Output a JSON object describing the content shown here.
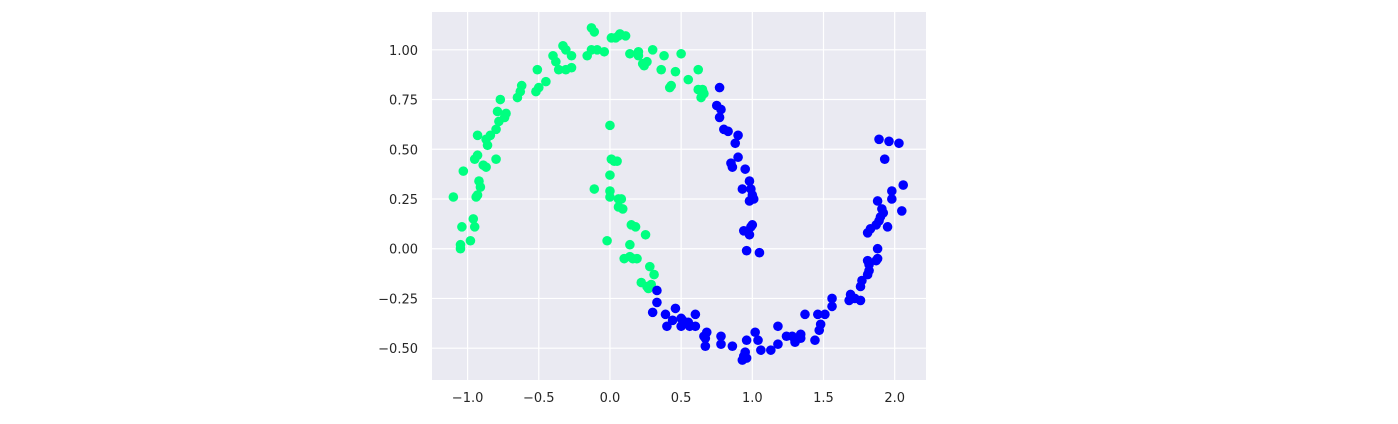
{
  "chart_data": {
    "type": "scatter",
    "title": "",
    "xlabel": "",
    "ylabel": "",
    "xlim": [
      -1.25,
      2.22
    ],
    "ylim": [
      -0.66,
      1.19
    ],
    "grid": true,
    "xticks": [
      {
        "value": -1.0,
        "label": "−1.0"
      },
      {
        "value": -0.5,
        "label": "−0.5"
      },
      {
        "value": 0.0,
        "label": "0.0"
      },
      {
        "value": 0.5,
        "label": "0.5"
      },
      {
        "value": 1.0,
        "label": "1.0"
      },
      {
        "value": 1.5,
        "label": "1.5"
      },
      {
        "value": 2.0,
        "label": "2.0"
      }
    ],
    "yticks": [
      {
        "value": -0.5,
        "label": "−0.50"
      },
      {
        "value": -0.25,
        "label": "−0.25"
      },
      {
        "value": 0.0,
        "label": "0.00"
      },
      {
        "value": 0.25,
        "label": "0.25"
      },
      {
        "value": 0.5,
        "label": "0.50"
      },
      {
        "value": 0.75,
        "label": "0.75"
      },
      {
        "value": 1.0,
        "label": "1.00"
      }
    ],
    "series": [
      {
        "color": "#00ff80",
        "points": [
          [
            -1.1,
            0.26
          ],
          [
            -1.05,
            0.02
          ],
          [
            -1.05,
            0.0
          ],
          [
            -1.04,
            0.11
          ],
          [
            -1.03,
            0.39
          ],
          [
            -0.98,
            0.04
          ],
          [
            -0.96,
            0.15
          ],
          [
            -0.95,
            0.11
          ],
          [
            -0.94,
            0.26
          ],
          [
            -0.93,
            0.27
          ],
          [
            -0.92,
            0.34
          ],
          [
            -0.91,
            0.31
          ],
          [
            -0.95,
            0.45
          ],
          [
            -0.93,
            0.47
          ],
          [
            -0.93,
            0.57
          ],
          [
            -0.89,
            0.42
          ],
          [
            -0.87,
            0.41
          ],
          [
            -0.86,
            0.52
          ],
          [
            -0.87,
            0.55
          ],
          [
            -0.84,
            0.57
          ],
          [
            -0.8,
            0.45
          ],
          [
            -0.8,
            0.6
          ],
          [
            -0.78,
            0.64
          ],
          [
            -0.79,
            0.69
          ],
          [
            -0.74,
            0.66
          ],
          [
            -0.73,
            0.68
          ],
          [
            -0.77,
            0.75
          ],
          [
            -0.65,
            0.76
          ],
          [
            -0.63,
            0.79
          ],
          [
            -0.62,
            0.82
          ],
          [
            -0.52,
            0.79
          ],
          [
            -0.5,
            0.81
          ],
          [
            -0.51,
            0.9
          ],
          [
            -0.45,
            0.84
          ],
          [
            -0.4,
            0.97
          ],
          [
            -0.38,
            0.94
          ],
          [
            -0.36,
            0.9
          ],
          [
            -0.31,
            0.9
          ],
          [
            -0.33,
            1.02
          ],
          [
            -0.31,
            1.0
          ],
          [
            -0.27,
            0.91
          ],
          [
            -0.27,
            0.97
          ],
          [
            -0.16,
            0.97
          ],
          [
            -0.13,
            1.0
          ],
          [
            -0.09,
            1.0
          ],
          [
            -0.04,
            0.99
          ],
          [
            -0.13,
            1.11
          ],
          [
            -0.11,
            1.09
          ],
          [
            0.01,
            1.06
          ],
          [
            0.04,
            1.06
          ],
          [
            0.07,
            1.08
          ],
          [
            0.06,
            1.07
          ],
          [
            0.11,
            1.07
          ],
          [
            0.14,
            0.98
          ],
          [
            0.2,
            0.99
          ],
          [
            0.2,
            0.97
          ],
          [
            0.23,
            0.93
          ],
          [
            0.24,
            0.92
          ],
          [
            0.26,
            0.94
          ],
          [
            0.3,
            1.0
          ],
          [
            0.36,
            0.9
          ],
          [
            0.38,
            0.97
          ],
          [
            0.42,
            0.81
          ],
          [
            0.43,
            0.82
          ],
          [
            0.46,
            0.89
          ],
          [
            0.5,
            0.98
          ],
          [
            0.55,
            0.85
          ],
          [
            0.62,
            0.9
          ],
          [
            0.62,
            0.8
          ],
          [
            0.64,
            0.76
          ],
          [
            0.65,
            0.8
          ],
          [
            0.66,
            0.78
          ],
          [
            0.0,
            0.62
          ],
          [
            0.01,
            0.45
          ],
          [
            0.03,
            0.44
          ],
          [
            0.05,
            0.44
          ],
          [
            0.0,
            0.37
          ],
          [
            -0.11,
            0.3
          ],
          [
            0.0,
            0.29
          ],
          [
            0.0,
            0.26
          ],
          [
            0.06,
            0.25
          ],
          [
            0.08,
            0.25
          ],
          [
            0.06,
            0.21
          ],
          [
            0.09,
            0.2
          ],
          [
            0.15,
            0.12
          ],
          [
            0.18,
            0.11
          ],
          [
            0.25,
            0.07
          ],
          [
            -0.02,
            0.04
          ],
          [
            0.14,
            0.02
          ],
          [
            0.1,
            -0.05
          ],
          [
            0.14,
            -0.04
          ],
          [
            0.16,
            -0.05
          ],
          [
            0.19,
            -0.05
          ],
          [
            0.28,
            -0.09
          ],
          [
            0.31,
            -0.13
          ],
          [
            0.22,
            -0.17
          ],
          [
            0.26,
            -0.19
          ],
          [
            0.27,
            -0.2
          ],
          [
            0.29,
            -0.18
          ]
        ]
      },
      {
        "color": "#0000ff",
        "points": [
          [
            0.77,
            0.81
          ],
          [
            0.75,
            0.72
          ],
          [
            0.78,
            0.7
          ],
          [
            0.77,
            0.66
          ],
          [
            0.8,
            0.6
          ],
          [
            0.83,
            0.59
          ],
          [
            0.9,
            0.57
          ],
          [
            0.88,
            0.53
          ],
          [
            0.9,
            0.46
          ],
          [
            0.85,
            0.43
          ],
          [
            0.86,
            0.41
          ],
          [
            0.95,
            0.4
          ],
          [
            0.98,
            0.34
          ],
          [
            0.93,
            0.3
          ],
          [
            0.99,
            0.3
          ],
          [
            1.0,
            0.27
          ],
          [
            1.01,
            0.25
          ],
          [
            0.98,
            0.24
          ],
          [
            1.0,
            0.12
          ],
          [
            0.99,
            0.11
          ],
          [
            0.94,
            0.09
          ],
          [
            0.98,
            0.07
          ],
          [
            0.96,
            -0.01
          ],
          [
            1.05,
            -0.02
          ],
          [
            0.33,
            -0.21
          ],
          [
            0.33,
            -0.27
          ],
          [
            0.3,
            -0.32
          ],
          [
            0.39,
            -0.33
          ],
          [
            0.46,
            -0.3
          ],
          [
            0.44,
            -0.36
          ],
          [
            0.4,
            -0.39
          ],
          [
            0.5,
            -0.35
          ],
          [
            0.51,
            -0.36
          ],
          [
            0.55,
            -0.37
          ],
          [
            0.5,
            -0.39
          ],
          [
            0.56,
            -0.39
          ],
          [
            0.6,
            -0.33
          ],
          [
            0.6,
            -0.39
          ],
          [
            0.66,
            -0.44
          ],
          [
            0.68,
            -0.42
          ],
          [
            0.67,
            -0.45
          ],
          [
            0.67,
            -0.49
          ],
          [
            0.78,
            -0.44
          ],
          [
            0.78,
            -0.48
          ],
          [
            0.86,
            -0.49
          ],
          [
            0.96,
            -0.46
          ],
          [
            1.02,
            -0.42
          ],
          [
            0.95,
            -0.52
          ],
          [
            0.94,
            -0.54
          ],
          [
            0.93,
            -0.56
          ],
          [
            0.96,
            -0.55
          ],
          [
            1.04,
            -0.46
          ],
          [
            1.06,
            -0.51
          ],
          [
            1.13,
            -0.51
          ],
          [
            1.18,
            -0.39
          ],
          [
            1.18,
            -0.48
          ],
          [
            1.24,
            -0.44
          ],
          [
            1.28,
            -0.44
          ],
          [
            1.3,
            -0.46
          ],
          [
            1.3,
            -0.47
          ],
          [
            1.34,
            -0.45
          ],
          [
            1.34,
            -0.43
          ],
          [
            1.44,
            -0.46
          ],
          [
            1.47,
            -0.41
          ],
          [
            1.48,
            -0.38
          ],
          [
            1.37,
            -0.33
          ],
          [
            1.46,
            -0.33
          ],
          [
            1.51,
            -0.33
          ],
          [
            1.56,
            -0.29
          ],
          [
            1.56,
            -0.25
          ],
          [
            1.68,
            -0.26
          ],
          [
            1.69,
            -0.23
          ],
          [
            1.72,
            -0.25
          ],
          [
            1.76,
            -0.26
          ],
          [
            1.76,
            -0.19
          ],
          [
            1.77,
            -0.16
          ],
          [
            1.81,
            -0.13
          ],
          [
            1.82,
            -0.11
          ],
          [
            1.82,
            -0.08
          ],
          [
            1.81,
            -0.06
          ],
          [
            1.87,
            -0.06
          ],
          [
            1.88,
            -0.05
          ],
          [
            1.88,
            0.0
          ],
          [
            1.81,
            0.08
          ],
          [
            1.83,
            0.1
          ],
          [
            1.87,
            0.12
          ],
          [
            1.89,
            0.14
          ],
          [
            1.9,
            0.16
          ],
          [
            1.92,
            0.18
          ],
          [
            1.91,
            0.2
          ],
          [
            1.88,
            0.24
          ],
          [
            1.95,
            0.11
          ],
          [
            1.98,
            0.25
          ],
          [
            1.98,
            0.29
          ],
          [
            2.05,
            0.19
          ],
          [
            2.06,
            0.32
          ],
          [
            1.93,
            0.45
          ],
          [
            1.89,
            0.55
          ],
          [
            1.96,
            0.54
          ],
          [
            2.03,
            0.53
          ]
        ]
      }
    ]
  }
}
